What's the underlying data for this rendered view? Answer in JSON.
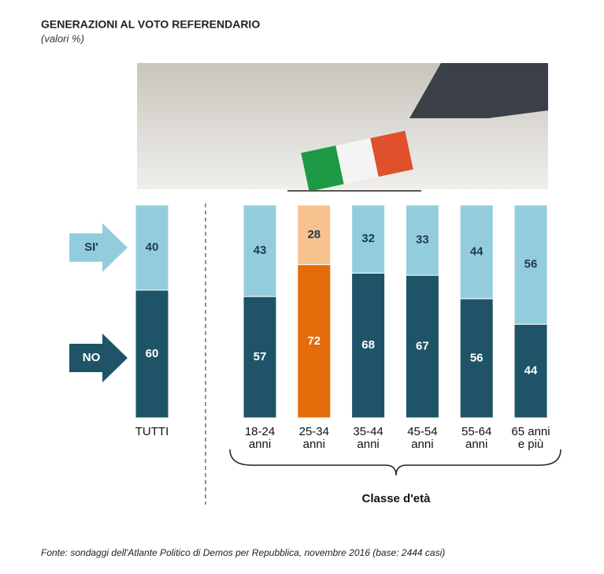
{
  "chart_data": {
    "type": "stacked_bar",
    "title": "GENERAZIONI AL VOTO REFERENDARIO",
    "subtitle": "(valori %)",
    "categories": [
      "TUTTI",
      "18-24\nanni",
      "25-34\nanni",
      "35-44\nanni",
      "45-54\nanni",
      "55-64\nanni",
      "65 anni\ne più"
    ],
    "group_label": "Classe d'età",
    "series": [
      {
        "name": "SI'",
        "color": "#93cddd",
        "colors": [
          "#93cddd",
          "#93cddd",
          "#f8c28f",
          "#93cddd",
          "#93cddd",
          "#93cddd",
          "#93cddd"
        ],
        "values": [
          40,
          43,
          28,
          32,
          33,
          44,
          56
        ]
      },
      {
        "name": "NO",
        "color": "#1f5468",
        "colors": [
          "#1f5468",
          "#1f5468",
          "#e46c0a",
          "#1f5468",
          "#1f5468",
          "#1f5468",
          "#1f5468"
        ],
        "values": [
          60,
          57,
          72,
          68,
          67,
          56,
          44
        ]
      }
    ],
    "ylim": [
      0,
      100
    ],
    "source": "Fonte: sondaggi dell'Atlante Politico di Demos per Repubblica, novembre 2016 (base: 2444 casi)"
  }
}
